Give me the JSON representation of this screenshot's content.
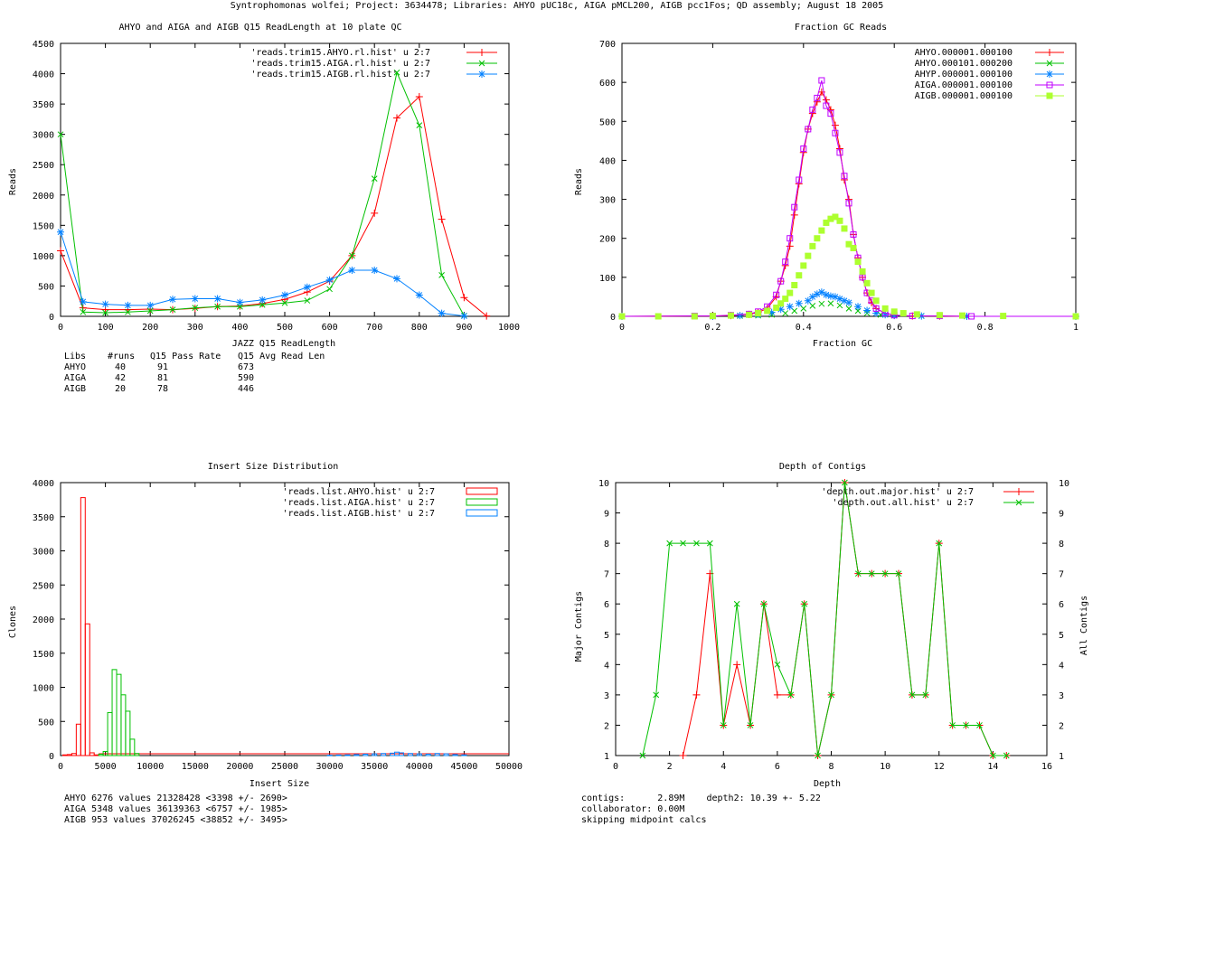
{
  "page_title": "Syntrophomonas wolfei; Project: 3634478; Libraries: AHYO pUC18c, AIGA pMCL200, AIGB pcc1Fos; QD assembly; August 18 2005",
  "colors": {
    "red": "#ff0000",
    "green": "#00c000",
    "blue": "#0080ff",
    "magenta": "#c000ff",
    "lime": "#adff2f"
  },
  "chart_data": [
    {
      "type": "line",
      "title": "AHYO and AIGA and AIGB Q15 ReadLength at 10 plate QC",
      "xlabel": "JAZZ Q15 ReadLength",
      "ylabel": "Reads",
      "xlim": [
        0,
        1000
      ],
      "ylim": [
        0,
        4500
      ],
      "xticks": [
        0,
        100,
        200,
        300,
        400,
        500,
        600,
        700,
        800,
        900,
        1000
      ],
      "yticks": [
        0,
        500,
        1000,
        1500,
        2000,
        2500,
        3000,
        3500,
        4000,
        4500
      ],
      "legend_position": "top-right",
      "series": [
        {
          "name": "'reads.trim15.AHYO.rl.hist' u 2:7",
          "color": "red",
          "marker": "plus",
          "x": [
            0,
            50,
            100,
            150,
            200,
            250,
            300,
            350,
            400,
            450,
            500,
            550,
            600,
            650,
            700,
            750,
            800,
            850,
            900,
            950
          ],
          "y": [
            1080,
            140,
            110,
            110,
            120,
            110,
            130,
            160,
            170,
            210,
            280,
            400,
            580,
            1000,
            1700,
            3270,
            3620,
            1600,
            310,
            5
          ]
        },
        {
          "name": "'reads.trim15.AIGA.rl.hist' u 2:7",
          "color": "green",
          "marker": "x",
          "x": [
            0,
            50,
            100,
            150,
            200,
            250,
            300,
            350,
            400,
            450,
            500,
            550,
            600,
            650,
            700,
            750,
            800,
            850,
            900
          ],
          "y": [
            3000,
            70,
            60,
            70,
            90,
            110,
            140,
            160,
            160,
            190,
            220,
            260,
            450,
            1000,
            2270,
            4020,
            3150,
            680,
            10
          ]
        },
        {
          "name": "'reads.trim15.AIGB.rl.hist' u 2:7",
          "color": "blue",
          "marker": "star",
          "x": [
            0,
            50,
            100,
            150,
            200,
            250,
            300,
            350,
            400,
            450,
            500,
            550,
            600,
            650,
            700,
            750,
            800,
            850,
            900
          ],
          "y": [
            1390,
            240,
            200,
            180,
            180,
            280,
            290,
            290,
            230,
            270,
            350,
            480,
            600,
            760,
            760,
            620,
            350,
            50,
            5
          ]
        }
      ],
      "stats_table": {
        "header": [
          "Libs",
          "#runs",
          "Q15 Pass Rate",
          "Q15 Avg Read Len"
        ],
        "rows": [
          [
            "AHYO",
            "40",
            "91",
            "673"
          ],
          [
            "AIGA",
            "42",
            "81",
            "590"
          ],
          [
            "AIGB",
            "20",
            "78",
            "446"
          ]
        ]
      }
    },
    {
      "type": "scatter",
      "title": "Fraction GC Reads",
      "xlabel": "Fraction GC",
      "ylabel": "Reads",
      "xlim": [
        0,
        1
      ],
      "ylim": [
        0,
        700
      ],
      "xticks": [
        0,
        0.2,
        0.4,
        0.6,
        0.8,
        1
      ],
      "yticks": [
        0,
        100,
        200,
        300,
        400,
        500,
        600,
        700
      ],
      "legend_position": "top-right",
      "series": [
        {
          "name": "AHYO.000001.000100",
          "color": "red",
          "marker": "plus",
          "x": [
            0.0,
            0.2,
            0.24,
            0.28,
            0.3,
            0.32,
            0.34,
            0.35,
            0.36,
            0.37,
            0.38,
            0.39,
            0.4,
            0.41,
            0.42,
            0.43,
            0.44,
            0.45,
            0.46,
            0.47,
            0.48,
            0.49,
            0.5,
            0.51,
            0.52,
            0.53,
            0.54,
            0.55,
            0.56,
            0.58,
            0.6,
            0.64,
            0.7,
            0.76,
            1.0
          ],
          "y": [
            0,
            1,
            2,
            5,
            10,
            20,
            50,
            90,
            130,
            180,
            260,
            340,
            420,
            480,
            520,
            550,
            575,
            555,
            530,
            490,
            430,
            350,
            300,
            210,
            150,
            100,
            60,
            35,
            20,
            8,
            3,
            1,
            1,
            0,
            0
          ]
        },
        {
          "name": "AHYO.000101.000200",
          "color": "green",
          "marker": "x",
          "x": [
            0.0,
            0.2,
            0.26,
            0.3,
            0.33,
            0.36,
            0.38,
            0.4,
            0.42,
            0.44,
            0.46,
            0.48,
            0.5,
            0.52,
            0.54,
            0.57,
            0.6,
            0.66,
            0.76,
            1.0
          ],
          "y": [
            0,
            0,
            1,
            2,
            4,
            8,
            14,
            20,
            27,
            32,
            33,
            28,
            20,
            14,
            8,
            4,
            2,
            1,
            0,
            0
          ]
        },
        {
          "name": "AHYP.000001.000100",
          "color": "blue",
          "marker": "star",
          "x": [
            0.0,
            0.2,
            0.26,
            0.3,
            0.33,
            0.35,
            0.37,
            0.39,
            0.41,
            0.42,
            0.43,
            0.44,
            0.45,
            0.46,
            0.47,
            0.48,
            0.49,
            0.5,
            0.52,
            0.54,
            0.56,
            0.58,
            0.6,
            0.66,
            0.76,
            1.0
          ],
          "y": [
            0,
            0,
            2,
            5,
            10,
            18,
            25,
            33,
            40,
            50,
            57,
            62,
            55,
            52,
            50,
            45,
            40,
            35,
            25,
            15,
            8,
            4,
            2,
            1,
            0,
            0
          ]
        },
        {
          "name": "AIGA.000001.000100",
          "color": "magenta",
          "marker": "square",
          "x": [
            0.0,
            0.16,
            0.2,
            0.24,
            0.28,
            0.3,
            0.32,
            0.34,
            0.35,
            0.36,
            0.37,
            0.38,
            0.39,
            0.4,
            0.41,
            0.42,
            0.43,
            0.44,
            0.45,
            0.46,
            0.47,
            0.48,
            0.49,
            0.5,
            0.51,
            0.52,
            0.53,
            0.54,
            0.55,
            0.56,
            0.58,
            0.6,
            0.64,
            0.7,
            0.77,
            1.0
          ],
          "y": [
            0,
            1,
            1,
            3,
            6,
            12,
            25,
            55,
            90,
            140,
            200,
            280,
            350,
            430,
            480,
            530,
            560,
            605,
            540,
            520,
            470,
            420,
            360,
            290,
            210,
            150,
            100,
            60,
            40,
            20,
            8,
            3,
            1,
            1,
            0,
            0
          ]
        },
        {
          "name": "AIGB.000001.000100",
          "color": "lime",
          "marker": "filled-square",
          "x": [
            0.0,
            0.08,
            0.16,
            0.2,
            0.24,
            0.28,
            0.3,
            0.32,
            0.34,
            0.35,
            0.36,
            0.37,
            0.38,
            0.39,
            0.4,
            0.41,
            0.42,
            0.43,
            0.44,
            0.45,
            0.46,
            0.47,
            0.48,
            0.49,
            0.5,
            0.51,
            0.52,
            0.53,
            0.54,
            0.55,
            0.56,
            0.58,
            0.6,
            0.62,
            0.65,
            0.7,
            0.75,
            0.84,
            1.0
          ],
          "y": [
            0,
            0,
            0,
            1,
            2,
            4,
            8,
            14,
            22,
            33,
            45,
            60,
            80,
            105,
            130,
            155,
            180,
            200,
            220,
            240,
            250,
            255,
            245,
            225,
            185,
            175,
            140,
            115,
            85,
            60,
            40,
            20,
            12,
            8,
            5,
            3,
            2,
            1,
            0
          ]
        }
      ]
    },
    {
      "type": "bar",
      "title": "Insert Size Distribution",
      "xlabel": "Insert Size",
      "ylabel": "Clones",
      "xlim": [
        0,
        50000
      ],
      "ylim": [
        0,
        4000
      ],
      "xticks": [
        0,
        5000,
        10000,
        15000,
        20000,
        25000,
        30000,
        35000,
        40000,
        45000,
        50000
      ],
      "yticks": [
        0,
        500,
        1000,
        1500,
        2000,
        2500,
        3000,
        3500,
        4000
      ],
      "legend_position": "top-right",
      "bin_width": 500,
      "series": [
        {
          "name": "'reads.list.AHYO.hist' u 2:7",
          "color": "red",
          "x": [
            500,
            1000,
            1500,
            2000,
            2500,
            3000,
            3500,
            4000
          ],
          "values": [
            10,
            15,
            30,
            460,
            3780,
            1930,
            40,
            10
          ]
        },
        {
          "name": "'reads.list.AIGA.hist' u 2:7",
          "color": "green",
          "x": [
            4500,
            5000,
            5500,
            6000,
            6500,
            7000,
            7500,
            8000,
            8500
          ],
          "values": [
            20,
            60,
            630,
            1260,
            1190,
            890,
            650,
            240,
            30
          ]
        },
        {
          "name": "'reads.list.AIGB.hist' u 2:7",
          "color": "blue",
          "x": [
            30000,
            31000,
            32000,
            33000,
            34000,
            35000,
            36000,
            37000,
            37500,
            38000,
            39000,
            40000,
            41000,
            42000,
            43000,
            44000,
            45000
          ],
          "values": [
            5,
            8,
            10,
            15,
            20,
            25,
            30,
            35,
            50,
            40,
            30,
            25,
            20,
            30,
            25,
            15,
            10
          ]
        }
      ],
      "stats": [
        "AHYO 6276 values 21328428 <3398 +/- 2690>",
        "AIGA 5348 values 36139363 <6757 +/- 1985>",
        "AIGB 953 values 37026245 <38852 +/- 3495>"
      ]
    },
    {
      "type": "line",
      "title": "Depth of Contigs",
      "xlabel": "Depth",
      "ylabel": "Major Contigs",
      "y2label": "All Contigs",
      "xlim": [
        0,
        16
      ],
      "ylim": [
        1,
        10
      ],
      "xticks": [
        0,
        2,
        4,
        6,
        8,
        10,
        12,
        14,
        16
      ],
      "yticks": [
        1,
        2,
        3,
        4,
        5,
        6,
        7,
        8,
        9,
        10
      ],
      "legend_position": "top-right",
      "series": [
        {
          "name": "'depth.out.major.hist' u 2:7",
          "color": "red",
          "marker": "plus",
          "x": [
            2.5,
            3,
            3.5,
            4,
            4.5,
            5,
            5.5,
            6,
            6.5,
            7,
            7.5,
            8,
            8.5,
            9,
            9.5,
            10,
            10.5,
            11,
            11.5,
            12,
            12.5,
            13,
            13.5,
            14,
            14.5
          ],
          "y": [
            1,
            3,
            7,
            2,
            4,
            2,
            6,
            3,
            3,
            6,
            1,
            3,
            10,
            7,
            7,
            7,
            7,
            3,
            3,
            8,
            2,
            2,
            2,
            1,
            1
          ]
        },
        {
          "name": "'depth.out.all.hist' u 2:7",
          "color": "green",
          "marker": "x",
          "x": [
            1,
            1.5,
            2,
            2.5,
            3,
            3.5,
            4,
            4.5,
            5,
            5.5,
            6,
            6.5,
            7,
            7.5,
            8,
            8.5,
            9,
            9.5,
            10,
            10.5,
            11,
            11.5,
            12,
            12.5,
            13,
            13.5,
            14,
            14.5
          ],
          "y": [
            1,
            3,
            8,
            8,
            8,
            8,
            2,
            6,
            2,
            6,
            4,
            3,
            6,
            1,
            3,
            10,
            7,
            7,
            7,
            7,
            3,
            3,
            8,
            2,
            2,
            2,
            1,
            1
          ]
        }
      ],
      "stats": [
        "contigs:      2.89M    depth2: 10.39 +- 5.22",
        "collaborator: 0.00M",
        "skipping midpoint calcs"
      ]
    }
  ]
}
